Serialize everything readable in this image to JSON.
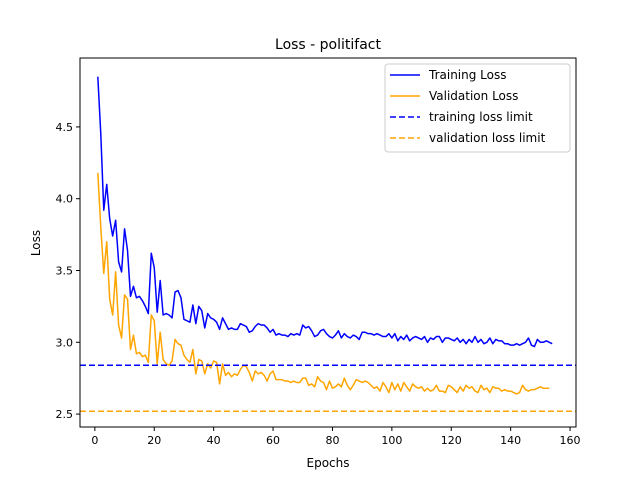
{
  "chart_data": {
    "type": "line",
    "title": "Loss - politifact",
    "xlabel": "Epochs",
    "ylabel": "Loss",
    "xlim": [
      -5,
      162
    ],
    "ylim": [
      2.41,
      4.98
    ],
    "xticks": [
      0,
      20,
      40,
      60,
      80,
      100,
      120,
      140,
      160
    ],
    "yticks": [
      2.5,
      3.0,
      3.5,
      4.0,
      4.5
    ],
    "xtick_labels": [
      "0",
      "20",
      "40",
      "60",
      "80",
      "100",
      "120",
      "140",
      "160"
    ],
    "ytick_labels": [
      "2.5",
      "3.0",
      "3.5",
      "4.0",
      "4.5"
    ],
    "grid": false,
    "legend_position": "top-right",
    "colors": {
      "training": "#0000ff",
      "validation": "#ffa500"
    },
    "series": [
      {
        "name": "Training Loss",
        "color": "#0000ff",
        "style": "solid",
        "values": [
          4.85,
          4.45,
          3.92,
          4.1,
          3.86,
          3.74,
          3.85,
          3.56,
          3.49,
          3.79,
          3.64,
          3.32,
          3.39,
          3.31,
          3.32,
          3.29,
          3.25,
          3.2,
          3.62,
          3.52,
          3.21,
          3.43,
          3.19,
          3.2,
          3.19,
          3.17,
          3.35,
          3.36,
          3.31,
          3.16,
          3.15,
          3.14,
          3.26,
          3.13,
          3.25,
          3.22,
          3.1,
          3.2,
          3.17,
          3.16,
          3.14,
          3.09,
          3.17,
          3.13,
          3.09,
          3.1,
          3.09,
          3.09,
          3.13,
          3.12,
          3.11,
          3.07,
          3.08,
          3.11,
          3.13,
          3.12,
          3.12,
          3.1,
          3.07,
          3.09,
          3.05,
          3.06,
          3.05,
          3.05,
          3.04,
          3.06,
          3.05,
          3.06,
          3.05,
          3.12,
          3.1,
          3.11,
          3.08,
          3.04,
          3.05,
          3.08,
          3.09,
          3.06,
          3.04,
          3.03,
          3.05,
          3.08,
          3.03,
          3.06,
          3.04,
          3.03,
          3.05,
          3.04,
          3.02,
          3.07,
          3.07,
          3.06,
          3.06,
          3.05,
          3.06,
          3.05,
          3.04,
          3.04,
          3.06,
          3.03,
          3.06,
          3.01,
          3.04,
          3.02,
          3.05,
          3.01,
          3.03,
          3.04,
          3.03,
          3.02,
          3.04,
          3.0,
          3.03,
          3.02,
          3.04,
          3.04,
          3.0,
          3.03,
          3.03,
          3.02,
          3.01,
          3.03,
          3.0,
          3.02,
          2.99,
          3.02,
          3.0,
          3.04,
          3.0,
          3.02,
          2.99,
          3.0,
          3.03,
          2.99,
          3.02,
          3.01,
          3.01,
          2.99,
          2.99,
          2.98,
          2.98,
          2.99,
          2.98,
          2.99,
          3.0,
          3.03,
          2.98,
          2.97,
          3.02,
          3.0,
          3.0,
          3.01,
          3.0,
          2.99
        ],
        "x_start": 1
      },
      {
        "name": "Validation Loss",
        "color": "#ffa500",
        "style": "solid",
        "values": [
          4.18,
          3.8,
          3.48,
          3.7,
          3.3,
          3.19,
          3.49,
          3.12,
          3.03,
          3.33,
          3.3,
          2.95,
          3.05,
          2.92,
          2.93,
          2.9,
          2.91,
          2.86,
          3.19,
          3.15,
          2.85,
          3.07,
          2.88,
          2.85,
          2.84,
          2.87,
          3.02,
          2.99,
          2.98,
          2.91,
          2.88,
          2.86,
          2.95,
          2.78,
          2.88,
          2.87,
          2.78,
          2.85,
          2.82,
          2.87,
          2.86,
          2.71,
          2.85,
          2.77,
          2.79,
          2.76,
          2.78,
          2.77,
          2.81,
          2.84,
          2.83,
          2.79,
          2.73,
          2.8,
          2.78,
          2.79,
          2.77,
          2.73,
          2.78,
          2.8,
          2.74,
          2.74,
          2.74,
          2.73,
          2.73,
          2.72,
          2.73,
          2.72,
          2.72,
          2.75,
          2.75,
          2.7,
          2.71,
          2.69,
          2.76,
          2.73,
          2.72,
          2.67,
          2.73,
          2.68,
          2.69,
          2.71,
          2.69,
          2.75,
          2.7,
          2.67,
          2.7,
          2.74,
          2.73,
          2.72,
          2.73,
          2.72,
          2.7,
          2.68,
          2.69,
          2.66,
          2.72,
          2.69,
          2.65,
          2.72,
          2.67,
          2.71,
          2.66,
          2.72,
          2.69,
          2.66,
          2.71,
          2.69,
          2.68,
          2.69,
          2.66,
          2.68,
          2.66,
          2.67,
          2.7,
          2.66,
          2.66,
          2.65,
          2.7,
          2.69,
          2.67,
          2.65,
          2.69,
          2.66,
          2.7,
          2.68,
          2.69,
          2.66,
          2.65,
          2.7,
          2.67,
          2.68,
          2.65,
          2.69,
          2.68,
          2.68,
          2.66,
          2.67,
          2.66,
          2.66,
          2.65,
          2.64,
          2.65,
          2.7,
          2.67,
          2.66,
          2.67,
          2.67,
          2.68,
          2.69,
          2.68,
          2.68,
          2.68
        ],
        "x_start": 1
      },
      {
        "name": "training loss limit",
        "color": "#0000ff",
        "style": "dashed",
        "y": 2.84
      },
      {
        "name": "validation loss limit",
        "color": "#ffa500",
        "style": "dashed",
        "y": 2.52
      }
    ]
  }
}
